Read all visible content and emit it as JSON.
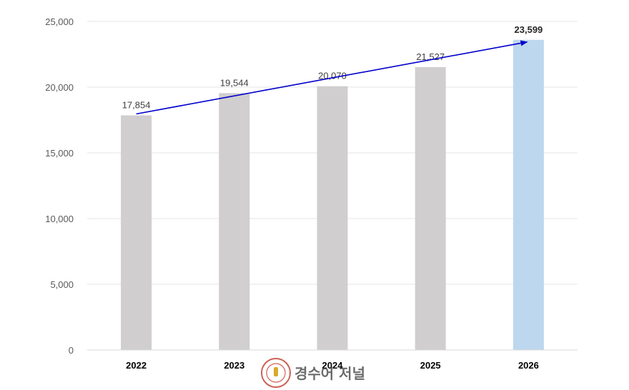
{
  "chart_data": {
    "type": "bar",
    "categories": [
      "2022",
      "2023",
      "2024",
      "2025",
      "2026"
    ],
    "values": [
      17854,
      19544,
      20070,
      21527,
      23599
    ],
    "data_labels": [
      "17,854",
      "19,544",
      "20,070",
      "21,527",
      "23,599"
    ],
    "highlight_index": 4,
    "ylim": [
      0,
      25000
    ],
    "yticks": [
      0,
      5000,
      10000,
      15000,
      20000,
      25000
    ],
    "ytick_labels": [
      "0",
      "5,000",
      "10,000",
      "15,000",
      "20,000",
      "25,000"
    ],
    "grid": true,
    "trend_arrow": {
      "from_index": 0,
      "to_index": 4
    },
    "colors": {
      "bar": "#d0cece",
      "highlight_bar": "#bdd7ee",
      "arrow": "#0000cc",
      "grid": "#e6e6e6",
      "axis": "#d9d9d9"
    }
  },
  "watermark": {
    "text": "경수어 저널",
    "seal_color": "#c0392b"
  }
}
